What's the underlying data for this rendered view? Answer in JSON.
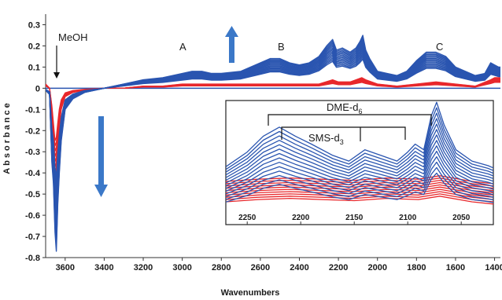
{
  "chart_data": [
    {
      "type": "line",
      "xlabel": "Wavenumbers",
      "ylabel": "Absorbance",
      "xlim": [
        3700,
        1370
      ],
      "ylim": [
        -0.8,
        0.35
      ],
      "x_ticks": [
        3600,
        3400,
        3200,
        3000,
        2800,
        2600,
        2400,
        2200,
        2000,
        1800,
        1600,
        1400
      ],
      "y_ticks": [
        0.3,
        0.2,
        0.1,
        0,
        -0.1,
        -0.2,
        -0.3,
        -0.4,
        -0.5,
        -0.6,
        -0.7,
        -0.8
      ],
      "colors": {
        "blue_series": "#2a55b0",
        "red_series": "#e8282c",
        "arrow": "#3b78c8"
      },
      "annotations": {
        "meoh": "MeOH",
        "band_a": "A",
        "band_b": "B",
        "band_c": "C",
        "trend": "blue spectra increase above baseline; MeOH band at 3650 decreases"
      },
      "series": [
        {
          "color": "blue",
          "x": [
            3700,
            3680,
            3668,
            3660,
            3652,
            3645,
            3638,
            3630,
            3620,
            3600,
            3560,
            3500,
            3400,
            3300,
            3200,
            3100,
            3000,
            2950,
            2900,
            2850,
            2800,
            2700,
            2600,
            2550,
            2500,
            2450,
            2400,
            2350,
            2300,
            2260,
            2230,
            2210,
            2180,
            2140,
            2110,
            2090,
            2075,
            2060,
            2040,
            2000,
            1950,
            1900,
            1850,
            1800,
            1750,
            1700,
            1650,
            1600,
            1550,
            1500,
            1450,
            1420,
            1400,
            1380,
            1370
          ],
          "values": [
            -0.01,
            -0.03,
            -0.35,
            -0.45,
            -0.68,
            -0.77,
            -0.55,
            -0.4,
            -0.25,
            -0.1,
            -0.05,
            -0.02,
            0.0,
            0.02,
            0.04,
            0.05,
            0.07,
            0.08,
            0.08,
            0.07,
            0.07,
            0.08,
            0.12,
            0.14,
            0.14,
            0.12,
            0.11,
            0.12,
            0.15,
            0.2,
            0.23,
            0.18,
            0.19,
            0.17,
            0.19,
            0.22,
            0.25,
            0.18,
            0.14,
            0.08,
            0.07,
            0.06,
            0.08,
            0.13,
            0.17,
            0.17,
            0.15,
            0.1,
            0.08,
            0.06,
            0.07,
            0.12,
            0.11,
            0.1,
            0.1
          ]
        },
        {
          "color": "red",
          "x": [
            3700,
            3680,
            3668,
            3660,
            3652,
            3645,
            3638,
            3630,
            3620,
            3600,
            3560,
            3500,
            3400,
            3300,
            3200,
            3100,
            3000,
            2900,
            2800,
            2700,
            2600,
            2500,
            2400,
            2300,
            2230,
            2200,
            2140,
            2080,
            2060,
            2000,
            1900,
            1800,
            1700,
            1600,
            1500,
            1420,
            1400,
            1370
          ],
          "values": [
            0.02,
            0.0,
            -0.15,
            -0.3,
            -0.45,
            -0.42,
            -0.3,
            -0.18,
            -0.1,
            -0.04,
            -0.02,
            -0.01,
            0.0,
            0.0,
            0.01,
            0.01,
            0.02,
            0.02,
            0.02,
            0.02,
            0.02,
            0.02,
            0.02,
            0.02,
            0.04,
            0.03,
            0.03,
            0.05,
            0.04,
            0.02,
            0.01,
            0.02,
            0.03,
            0.02,
            0.01,
            0.04,
            0.05,
            0.05
          ]
        }
      ]
    },
    {
      "type": "line",
      "xlim": [
        2270,
        2020
      ],
      "x_ticks": [
        2250,
        2200,
        2150,
        2100,
        2050
      ],
      "labels": {
        "dme": "DME-d",
        "dme_sub": "6",
        "sms": "SMS-d",
        "sms_sub": "3"
      },
      "series": [
        {
          "color": "blue",
          "x": [
            2270,
            2250,
            2235,
            2220,
            2205,
            2190,
            2170,
            2155,
            2140,
            2125,
            2110,
            2100,
            2093,
            2085,
            2078,
            2073,
            2066,
            2055,
            2040,
            2025,
            2020
          ],
          "values": [
            0.35,
            0.48,
            0.62,
            0.7,
            0.62,
            0.55,
            0.45,
            0.4,
            0.5,
            0.45,
            0.4,
            0.48,
            0.55,
            0.5,
            0.8,
            0.92,
            0.72,
            0.5,
            0.4,
            0.36,
            0.34
          ]
        },
        {
          "color": "red",
          "x": [
            2270,
            2240,
            2210,
            2180,
            2150,
            2120,
            2090,
            2070,
            2040,
            2020
          ],
          "values": [
            0.1,
            0.12,
            0.13,
            0.12,
            0.11,
            0.13,
            0.12,
            0.15,
            0.1,
            0.08
          ]
        }
      ]
    }
  ]
}
